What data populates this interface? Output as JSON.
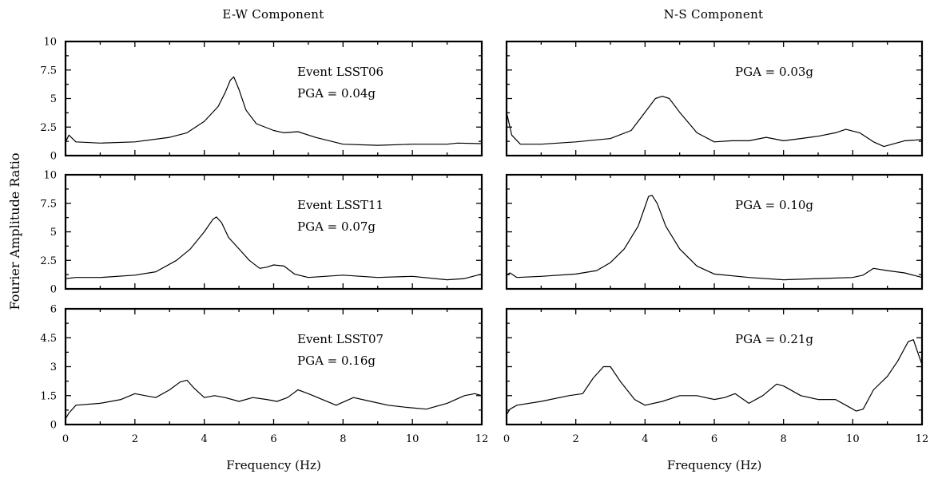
{
  "figure": {
    "column_titles": [
      "E-W Component",
      "N-S Component"
    ],
    "shared_ylabel": "Fourier Amplitude Ratio",
    "shared_xlabel": "Frequency (Hz)"
  },
  "chart_data": [
    {
      "type": "line",
      "panel": "row1-col1",
      "title": "",
      "annotation": [
        "Event LSST06",
        "PGA = 0.04g"
      ],
      "xlim": [
        0,
        12
      ],
      "ylim": [
        0,
        10
      ],
      "xticks": [
        0,
        2,
        4,
        6,
        8,
        10,
        12
      ],
      "yticks": [
        0,
        2.5,
        5,
        7.5,
        10
      ],
      "yticklabels": [
        "0",
        "2.5",
        "5",
        "7.5",
        "10"
      ],
      "x": [
        0.0,
        0.1,
        0.3,
        1.0,
        2.0,
        3.0,
        3.5,
        4.0,
        4.4,
        4.6,
        4.75,
        4.85,
        5.0,
        5.2,
        5.5,
        6.0,
        6.3,
        6.7,
        7.2,
        8.0,
        9.0,
        10.0,
        11.0,
        11.3,
        12.0
      ],
      "y": [
        1.2,
        1.8,
        1.2,
        1.1,
        1.2,
        1.6,
        2.0,
        3.0,
        4.3,
        5.5,
        6.6,
        6.9,
        5.8,
        4.0,
        2.8,
        2.2,
        2.0,
        2.1,
        1.6,
        1.0,
        0.9,
        1.0,
        1.0,
        1.1,
        1.05
      ]
    },
    {
      "type": "line",
      "panel": "row1-col2",
      "title": "",
      "annotation": [
        "PGA = 0.03g"
      ],
      "xlim": [
        0,
        12
      ],
      "ylim": [
        0,
        10
      ],
      "xticks": [
        0,
        2,
        4,
        6,
        8,
        10,
        12
      ],
      "yticks": [
        0,
        2.5,
        5,
        7.5,
        10
      ],
      "x": [
        0.0,
        0.15,
        0.4,
        1.0,
        2.0,
        3.0,
        3.6,
        4.0,
        4.3,
        4.5,
        4.7,
        5.0,
        5.5,
        6.0,
        6.5,
        7.0,
        7.5,
        8.0,
        8.5,
        9.0,
        9.5,
        9.8,
        10.2,
        10.6,
        10.9,
        11.5,
        12.0
      ],
      "y": [
        3.8,
        1.8,
        1.0,
        1.0,
        1.2,
        1.5,
        2.2,
        3.8,
        5.0,
        5.2,
        5.0,
        3.8,
        2.0,
        1.2,
        1.3,
        1.3,
        1.6,
        1.3,
        1.5,
        1.7,
        2.0,
        2.3,
        2.0,
        1.2,
        0.8,
        1.3,
        1.4
      ]
    },
    {
      "type": "line",
      "panel": "row2-col1",
      "title": "",
      "annotation": [
        "Event LSST11",
        "PGA = 0.07g"
      ],
      "xlim": [
        0,
        12
      ],
      "ylim": [
        0,
        10
      ],
      "xticks": [
        0,
        2,
        4,
        6,
        8,
        10,
        12
      ],
      "yticks": [
        0,
        2.5,
        5,
        7.5,
        10
      ],
      "yticklabels": [
        "0",
        "2.5",
        "5",
        "7.5",
        "10"
      ],
      "x": [
        0.0,
        0.3,
        1.0,
        2.0,
        2.6,
        3.2,
        3.6,
        4.0,
        4.25,
        4.35,
        4.5,
        4.7,
        5.0,
        5.3,
        5.6,
        5.8,
        6.0,
        6.3,
        6.6,
        7.0,
        8.0,
        9.0,
        10.0,
        11.0,
        11.5,
        12.0
      ],
      "y": [
        0.9,
        1.0,
        1.0,
        1.2,
        1.5,
        2.5,
        3.5,
        5.0,
        6.1,
        6.3,
        5.8,
        4.5,
        3.5,
        2.5,
        1.8,
        1.9,
        2.1,
        2.0,
        1.3,
        1.0,
        1.2,
        1.0,
        1.1,
        0.8,
        0.9,
        1.3
      ]
    },
    {
      "type": "line",
      "panel": "row2-col2",
      "title": "",
      "annotation": [
        "PGA = 0.10g"
      ],
      "xlim": [
        0,
        12
      ],
      "ylim": [
        0,
        10
      ],
      "xticks": [
        0,
        2,
        4,
        6,
        8,
        10,
        12
      ],
      "yticks": [
        0,
        2.5,
        5,
        7.5,
        10
      ],
      "x": [
        0.0,
        0.1,
        0.3,
        1.0,
        2.0,
        2.6,
        3.0,
        3.4,
        3.8,
        4.0,
        4.1,
        4.2,
        4.35,
        4.6,
        5.0,
        5.5,
        6.0,
        7.0,
        8.0,
        9.0,
        10.0,
        10.3,
        10.6,
        11.0,
        11.5,
        12.0
      ],
      "y": [
        1.2,
        1.4,
        1.0,
        1.1,
        1.3,
        1.6,
        2.3,
        3.5,
        5.5,
        7.2,
        8.1,
        8.2,
        7.5,
        5.5,
        3.5,
        2.0,
        1.3,
        1.0,
        0.8,
        0.9,
        1.0,
        1.2,
        1.8,
        1.6,
        1.4,
        1.0
      ]
    },
    {
      "type": "line",
      "panel": "row3-col1",
      "title": "",
      "annotation": [
        "Event LSST07",
        "PGA = 0.16g"
      ],
      "xlim": [
        0,
        12
      ],
      "ylim": [
        0,
        6
      ],
      "xticks": [
        0,
        2,
        4,
        6,
        8,
        10,
        12
      ],
      "yticks": [
        0,
        1.5,
        3,
        4.5,
        6
      ],
      "yticklabels": [
        "0",
        "1.5",
        "3",
        "4.5",
        "6"
      ],
      "xticklabels": [
        "0",
        "2",
        "4",
        "6",
        "8",
        "10",
        "12"
      ],
      "xlabel": "Frequency (Hz)",
      "x": [
        0.0,
        0.1,
        0.3,
        1.0,
        1.6,
        2.0,
        2.3,
        2.6,
        3.0,
        3.3,
        3.5,
        3.7,
        4.0,
        4.3,
        4.6,
        5.0,
        5.4,
        5.8,
        6.1,
        6.4,
        6.7,
        7.0,
        7.4,
        7.8,
        8.3,
        8.8,
        9.3,
        9.8,
        10.4,
        11.0,
        11.5,
        11.8,
        12.0
      ],
      "y": [
        0.3,
        0.6,
        1.0,
        1.1,
        1.3,
        1.6,
        1.5,
        1.4,
        1.8,
        2.2,
        2.3,
        1.9,
        1.4,
        1.5,
        1.4,
        1.2,
        1.4,
        1.3,
        1.2,
        1.4,
        1.8,
        1.6,
        1.3,
        1.0,
        1.4,
        1.2,
        1.0,
        0.9,
        0.8,
        1.1,
        1.5,
        1.6,
        1.5
      ]
    },
    {
      "type": "line",
      "panel": "row3-col2",
      "title": "",
      "annotation": [
        "PGA = 0.21g"
      ],
      "xlim": [
        0,
        12
      ],
      "ylim": [
        0,
        6
      ],
      "xticks": [
        0,
        2,
        4,
        6,
        8,
        10,
        12
      ],
      "yticks": [
        0,
        1.5,
        3,
        4.5,
        6
      ],
      "xticklabels": [
        "0",
        "2",
        "4",
        "6",
        "8",
        "10",
        "12"
      ],
      "xlabel": "Frequency (Hz)",
      "x": [
        0.0,
        0.1,
        0.3,
        1.0,
        1.8,
        2.2,
        2.5,
        2.8,
        3.0,
        3.3,
        3.7,
        4.0,
        4.5,
        5.0,
        5.5,
        6.0,
        6.3,
        6.6,
        7.0,
        7.4,
        7.8,
        8.0,
        8.5,
        9.0,
        9.5,
        9.8,
        10.1,
        10.3,
        10.6,
        11.0,
        11.3,
        11.6,
        11.75,
        12.0
      ],
      "y": [
        0.5,
        0.8,
        1.0,
        1.2,
        1.5,
        1.6,
        2.4,
        3.0,
        3.0,
        2.2,
        1.3,
        1.0,
        1.2,
        1.5,
        1.5,
        1.3,
        1.4,
        1.6,
        1.1,
        1.5,
        2.1,
        2.0,
        1.5,
        1.3,
        1.3,
        1.0,
        0.7,
        0.8,
        1.8,
        2.5,
        3.3,
        4.3,
        4.4,
        3.1
      ]
    }
  ]
}
